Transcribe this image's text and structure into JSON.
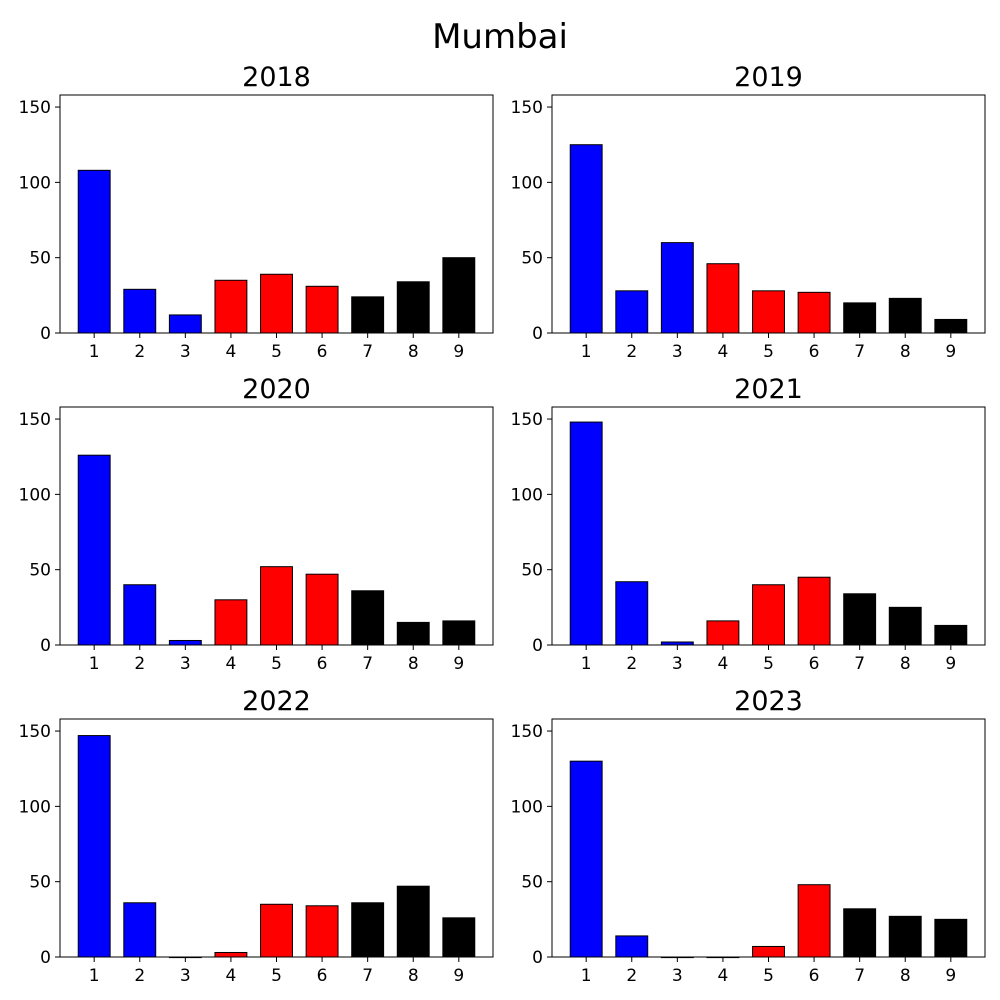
{
  "chart_data": {
    "type": "bar",
    "title": "Mumbai",
    "categories": [
      "1",
      "2",
      "3",
      "4",
      "5",
      "6",
      "7",
      "8",
      "9"
    ],
    "category_colors": [
      "#0000ff",
      "#0000ff",
      "#0000ff",
      "#ff0000",
      "#ff0000",
      "#ff0000",
      "#000000",
      "#000000",
      "#000000"
    ],
    "edge_color": "#000000",
    "ylim": [
      0,
      158
    ],
    "yticks": [
      "0",
      "50",
      "100",
      "150"
    ],
    "grid": false,
    "legend": "none",
    "panels": [
      {
        "title": "2018",
        "values": [
          108,
          29,
          12,
          35,
          39,
          31,
          24,
          34,
          50
        ]
      },
      {
        "title": "2019",
        "values": [
          125,
          28,
          60,
          46,
          28,
          27,
          20,
          23,
          9
        ]
      },
      {
        "title": "2020",
        "values": [
          126,
          40,
          3,
          30,
          52,
          47,
          36,
          15,
          16
        ]
      },
      {
        "title": "2021",
        "values": [
          148,
          42,
          2,
          16,
          40,
          45,
          34,
          25,
          13
        ]
      },
      {
        "title": "2022",
        "values": [
          147,
          36,
          0,
          3,
          35,
          34,
          36,
          47,
          26
        ]
      },
      {
        "title": "2023",
        "values": [
          130,
          14,
          0,
          0,
          7,
          48,
          32,
          27,
          25
        ]
      }
    ]
  }
}
